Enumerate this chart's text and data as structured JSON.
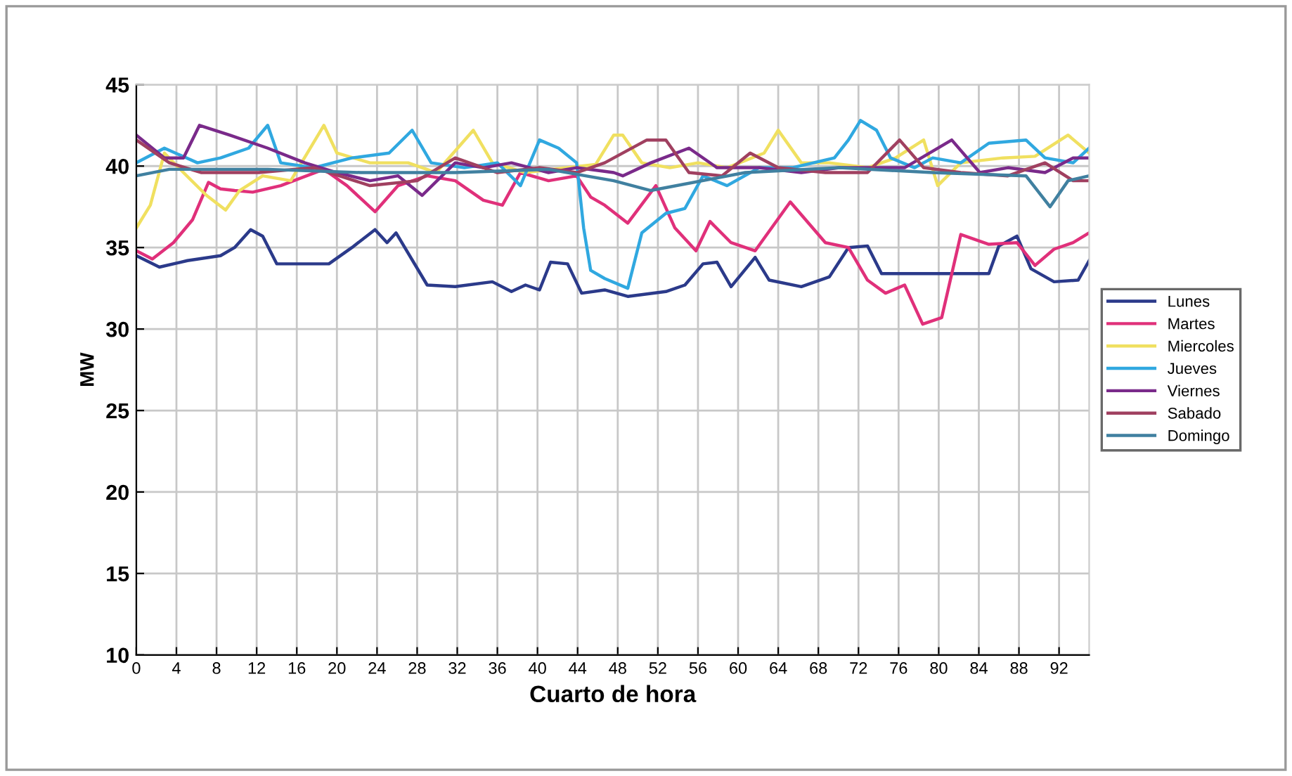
{
  "chart_data": {
    "type": "line",
    "xlabel": "Cuarto de hora",
    "ylabel": "MW",
    "xlim": [
      0,
      95
    ],
    "xticks": [
      0,
      4,
      8,
      12,
      16,
      20,
      24,
      28,
      32,
      36,
      40,
      44,
      48,
      52,
      56,
      60,
      64,
      68,
      72,
      76,
      80,
      84,
      88,
      92
    ],
    "ylim": [
      10,
      45
    ],
    "yticks": [
      10,
      15,
      20,
      25,
      30,
      35,
      40,
      45
    ],
    "grid": true,
    "legend": "right",
    "marker": "none",
    "line_style": "solid",
    "series": [
      {
        "name": "Lunes",
        "color": "#2b3a8a",
        "x": [
          0,
          2.3,
          5.1,
          8.4,
          9.8,
          11.4,
          12.6,
          14,
          19.2,
          21.5,
          23.8,
          25,
          25.9,
          29,
          31.8,
          35.5,
          37.4,
          38.8,
          40.2,
          41.3,
          43,
          44.4,
          46.7,
          49,
          52.8,
          54.7,
          56.5,
          57.9,
          59.3,
          61.7,
          63.1,
          66.3,
          69.1,
          71,
          72.9,
          74.3,
          85,
          86,
          87.8,
          89.2,
          91.5,
          93.9,
          95
        ],
        "values": [
          34.5,
          33.8,
          34.2,
          34.5,
          35.0,
          36.1,
          35.7,
          34.0,
          34.0,
          35.0,
          36.1,
          35.3,
          35.9,
          32.7,
          32.6,
          32.9,
          32.3,
          32.7,
          32.4,
          34.1,
          34.0,
          32.2,
          32.4,
          32.0,
          32.3,
          32.7,
          34.0,
          34.1,
          32.6,
          34.4,
          33.0,
          32.6,
          33.2,
          35.0,
          35.1,
          33.4,
          33.4,
          35.1,
          35.7,
          33.7,
          32.9,
          33.0,
          34.2
        ]
      },
      {
        "name": "Martes",
        "color": "#e0307a",
        "x": [
          0,
          1.6,
          3.7,
          5.6,
          7.2,
          8.4,
          9.8,
          11.6,
          14.4,
          18.7,
          21,
          23.8,
          26.1,
          29,
          31.8,
          34.6,
          36.5,
          38.3,
          41.1,
          43.9,
          45.3,
          46.7,
          49,
          51.8,
          53.7,
          55.8,
          57.2,
          59.3,
          61.7,
          65.2,
          68.7,
          71,
          72.9,
          74.7,
          76.6,
          78.4,
          80.3,
          82.2,
          85,
          87.8,
          89.6,
          91.5,
          93.4,
          95
        ],
        "values": [
          34.8,
          34.3,
          35.3,
          36.7,
          39.0,
          38.6,
          38.5,
          38.4,
          38.8,
          39.8,
          38.8,
          37.2,
          38.8,
          39.4,
          39.1,
          37.9,
          37.6,
          39.6,
          39.1,
          39.4,
          38.1,
          37.6,
          36.5,
          38.8,
          36.2,
          34.8,
          36.6,
          35.3,
          34.8,
          37.8,
          35.3,
          35.0,
          33.0,
          32.2,
          32.7,
          30.3,
          30.7,
          35.8,
          35.2,
          35.3,
          33.9,
          34.9,
          35.3,
          35.9
        ]
      },
      {
        "name": "Miercoles",
        "color": "#f0e060",
        "x": [
          0,
          1.4,
          2.8,
          4.7,
          7,
          8.9,
          10.3,
          12.6,
          15.4,
          18.7,
          20,
          23.3,
          27.1,
          29.9,
          33.6,
          35.5,
          38.8,
          43,
          45.8,
          47.6,
          48.5,
          50.4,
          53.2,
          56,
          58.9,
          62.6,
          64,
          66.3,
          69.1,
          72.9,
          75.7,
          78.5,
          79.9,
          82.2,
          86.4,
          89.6,
          92.9,
          95
        ],
        "values": [
          36.2,
          37.6,
          40.8,
          39.6,
          38.2,
          37.3,
          38.5,
          39.4,
          39.1,
          42.5,
          40.8,
          40.2,
          40.2,
          39.6,
          42.2,
          40.2,
          39.6,
          39.9,
          40.1,
          41.9,
          41.9,
          40.2,
          39.9,
          40.2,
          39.9,
          40.8,
          42.2,
          40.2,
          40.2,
          39.9,
          40.5,
          41.6,
          38.8,
          40.2,
          40.5,
          40.6,
          41.9,
          40.8
        ]
      },
      {
        "name": "Jueves",
        "color": "#30a8e0",
        "x": [
          0,
          2.8,
          6.1,
          8.4,
          11.2,
          13.1,
          14.4,
          17.7,
          21.5,
          25.2,
          27.5,
          29.4,
          32.7,
          36,
          38.3,
          40.2,
          42.1,
          43.9,
          44.6,
          45.3,
          46.7,
          49,
          50.4,
          52.8,
          54.7,
          56.5,
          58.9,
          62.1,
          65.4,
          69.6,
          71,
          72.2,
          73.8,
          75.2,
          77.6,
          79.4,
          82.2,
          85,
          88.7,
          90.6,
          93.4,
          95
        ],
        "values": [
          40.2,
          41.1,
          40.2,
          40.5,
          41.1,
          42.5,
          40.2,
          39.9,
          40.5,
          40.8,
          42.2,
          40.2,
          39.9,
          40.2,
          38.8,
          41.6,
          41.1,
          40.2,
          36.2,
          33.6,
          33.1,
          32.5,
          35.9,
          37.1,
          37.4,
          39.4,
          38.8,
          39.9,
          39.9,
          40.5,
          41.6,
          42.8,
          42.2,
          40.5,
          39.9,
          40.5,
          40.2,
          41.4,
          41.6,
          40.5,
          40.2,
          41.1
        ]
      },
      {
        "name": "Viernes",
        "color": "#7a2a8a",
        "x": [
          0,
          2.8,
          4.7,
          6.3,
          9.3,
          13.1,
          16.8,
          20,
          23.3,
          26.1,
          28.5,
          31.8,
          34.6,
          37.4,
          41.1,
          43.9,
          47.6,
          48.5,
          51.3,
          55.1,
          57.9,
          62.1,
          66.3,
          70.1,
          72.9,
          76.6,
          81.3,
          84.1,
          86.9,
          90.6,
          93.4,
          95
        ],
        "values": [
          41.9,
          40.5,
          40.5,
          42.5,
          41.9,
          41.1,
          40.2,
          39.6,
          39.1,
          39.4,
          38.2,
          40.2,
          39.9,
          40.2,
          39.6,
          39.9,
          39.6,
          39.4,
          40.2,
          41.1,
          39.9,
          39.9,
          39.6,
          39.9,
          39.9,
          39.9,
          41.6,
          39.6,
          39.9,
          39.6,
          40.5,
          40.5
        ]
      },
      {
        "name": "Sabado",
        "color": "#a04060",
        "x": [
          0,
          3.3,
          6.5,
          12.2,
          17.7,
          23.3,
          28,
          31.8,
          36,
          40.2,
          43.9,
          46.7,
          50.9,
          52.8,
          55.1,
          58.4,
          61.2,
          64,
          68.7,
          72.9,
          76.1,
          78.5,
          82.2,
          86.9,
          90.6,
          93.4,
          95
        ],
        "values": [
          41.6,
          40.2,
          39.6,
          39.6,
          39.9,
          38.8,
          39.1,
          40.5,
          39.6,
          39.9,
          39.6,
          40.2,
          41.6,
          41.6,
          39.6,
          39.4,
          40.8,
          39.9,
          39.6,
          39.6,
          41.6,
          39.9,
          39.6,
          39.4,
          40.2,
          39.1,
          39.1
        ]
      },
      {
        "name": "Domingo",
        "color": "#4080a0",
        "x": [
          0,
          3.3,
          13.1,
          22.4,
          31.8,
          41.1,
          47.6,
          51.3,
          60.7,
          70.1,
          79.4,
          88.7,
          91.1,
          92.9,
          95
        ],
        "values": [
          39.4,
          39.8,
          39.8,
          39.6,
          39.6,
          39.8,
          39.1,
          38.5,
          39.6,
          39.9,
          39.6,
          39.4,
          37.5,
          39.1,
          39.4
        ]
      }
    ]
  }
}
